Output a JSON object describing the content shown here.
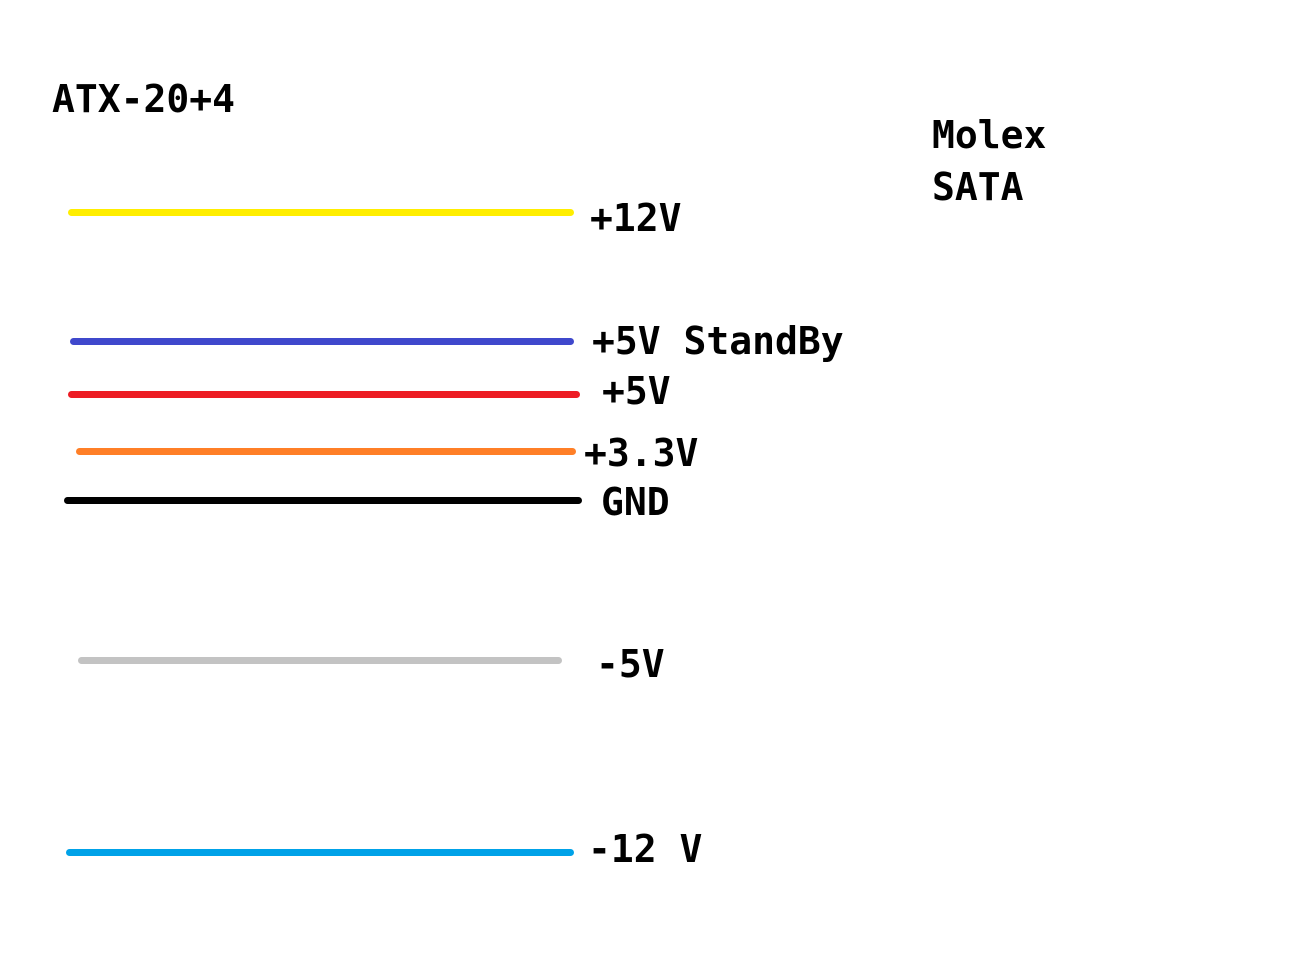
{
  "titles": {
    "connector_left": "ATX-20+4",
    "connector_right_1": "Molex",
    "connector_right_2": "SATA"
  },
  "wires": [
    {
      "id": "12v",
      "label": "+12V",
      "color": "#ffee00"
    },
    {
      "id": "5vsb",
      "label": "+5V StandBy",
      "color": "#3f48cc"
    },
    {
      "id": "5v",
      "label": "+5V",
      "color": "#ed1c24"
    },
    {
      "id": "3v3",
      "label": "+3.3V",
      "color": "#ff7f27"
    },
    {
      "id": "gnd",
      "label": "GND",
      "color": "#000000"
    },
    {
      "id": "m5v",
      "label": "-5V",
      "color": "#c3c3c3"
    },
    {
      "id": "m12v",
      "label": "-12 V",
      "color": "#00a2e8"
    }
  ]
}
